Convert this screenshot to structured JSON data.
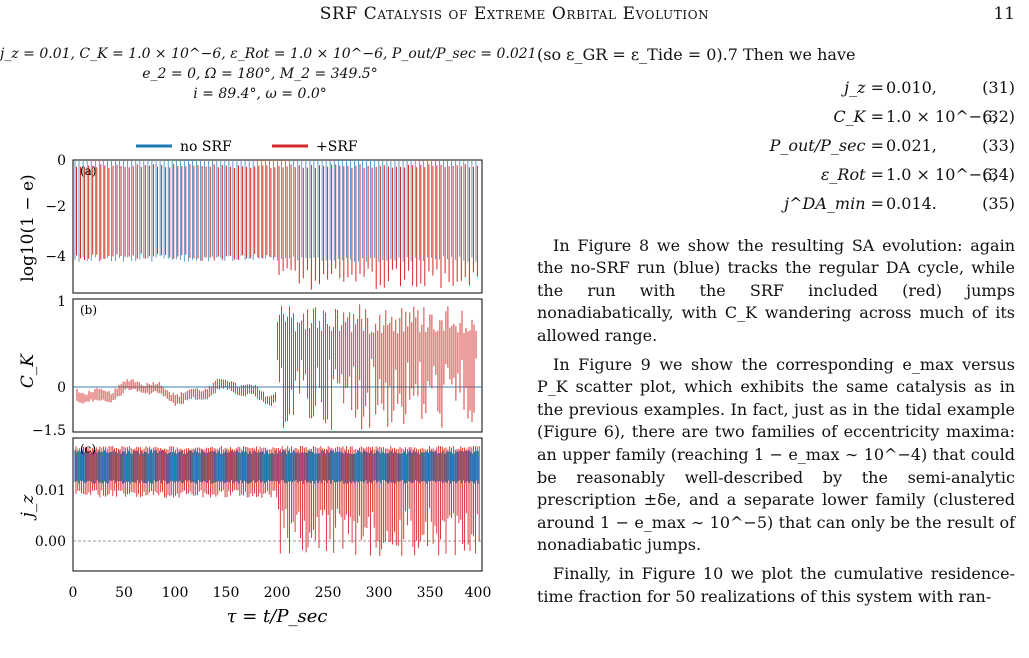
{
  "header": {
    "title": "SRF Catalysis of Extreme Orbital Evolution",
    "page": "11"
  },
  "figure": {
    "params": [
      "j_z = 0.01,    C_K = 1.0 × 10^−6,    ε_Rot = 1.0 × 10^−6,    P_out/P_sec = 0.021",
      "e_2 = 0,    Ω = 180°,    M_2 = 349.5°",
      "i = 89.4°,    ω = 0.0°"
    ],
    "legend": [
      "no SRF",
      "+SRF"
    ],
    "colors": {
      "no_srf": "#1f77b4",
      "srf": "#d62728"
    },
    "panels": [
      {
        "tag": "(a)",
        "ylabel": "log10(1 − e)",
        "yticks": [
          "0",
          "−2",
          "−4"
        ]
      },
      {
        "tag": "(b)",
        "ylabel": "C_K",
        "yticks": [
          "1",
          "0",
          "−1.5"
        ]
      },
      {
        "tag": "(c)",
        "ylabel": "j_z",
        "yticks": [
          "0.01",
          "0.00"
        ]
      }
    ],
    "xticks": [
      "0",
      "50",
      "100",
      "150",
      "200",
      "250",
      "300",
      "350",
      "400"
    ],
    "xlabel": "τ = t/P_sec"
  },
  "text": {
    "intro": "(so ε_GR = ε_Tide = 0).7 Then we have",
    "equations": [
      {
        "lhs": "j_z =",
        "rhs": "0.010,",
        "num": "(31)"
      },
      {
        "lhs": "C_K =",
        "rhs": "1.0 × 10^−6,",
        "num": "(32)"
      },
      {
        "lhs": "P_out/P_sec =",
        "rhs": "0.021,",
        "num": "(33)"
      },
      {
        "lhs": "ε_Rot =",
        "rhs": "1.0 × 10^−6,",
        "num": "(34)"
      },
      {
        "lhs": "j^DA_min =",
        "rhs": "0.014.",
        "num": "(35)"
      }
    ],
    "p1": "In Figure 8 we show the resulting SA evolution: again the no-SRF run (blue) tracks the regular DA cycle, while the run with the SRF included (red) jumps nonadiabatically, with C_K wandering across much of its allowed range.",
    "p2": "In Figure 9 we show the corresponding e_max versus P_K scatter plot, which exhibits the same catalysis as in the previous examples. In fact, just as in the tidal example (Figure 6), there are two families of eccentricity maxima: an upper family (reaching 1 − e_max ∼ 10^−4) that could be reasonably well-described by the semi-analytic prescription ±δe, and a separate lower family (clustered around 1 − e_max ∼ 10^−5) that can only be the result of nonadiabatic jumps.",
    "p3": "Finally, in Figure 10 we plot the cumulative residence-time fraction for 50 realizations of this system with ran-"
  }
}
